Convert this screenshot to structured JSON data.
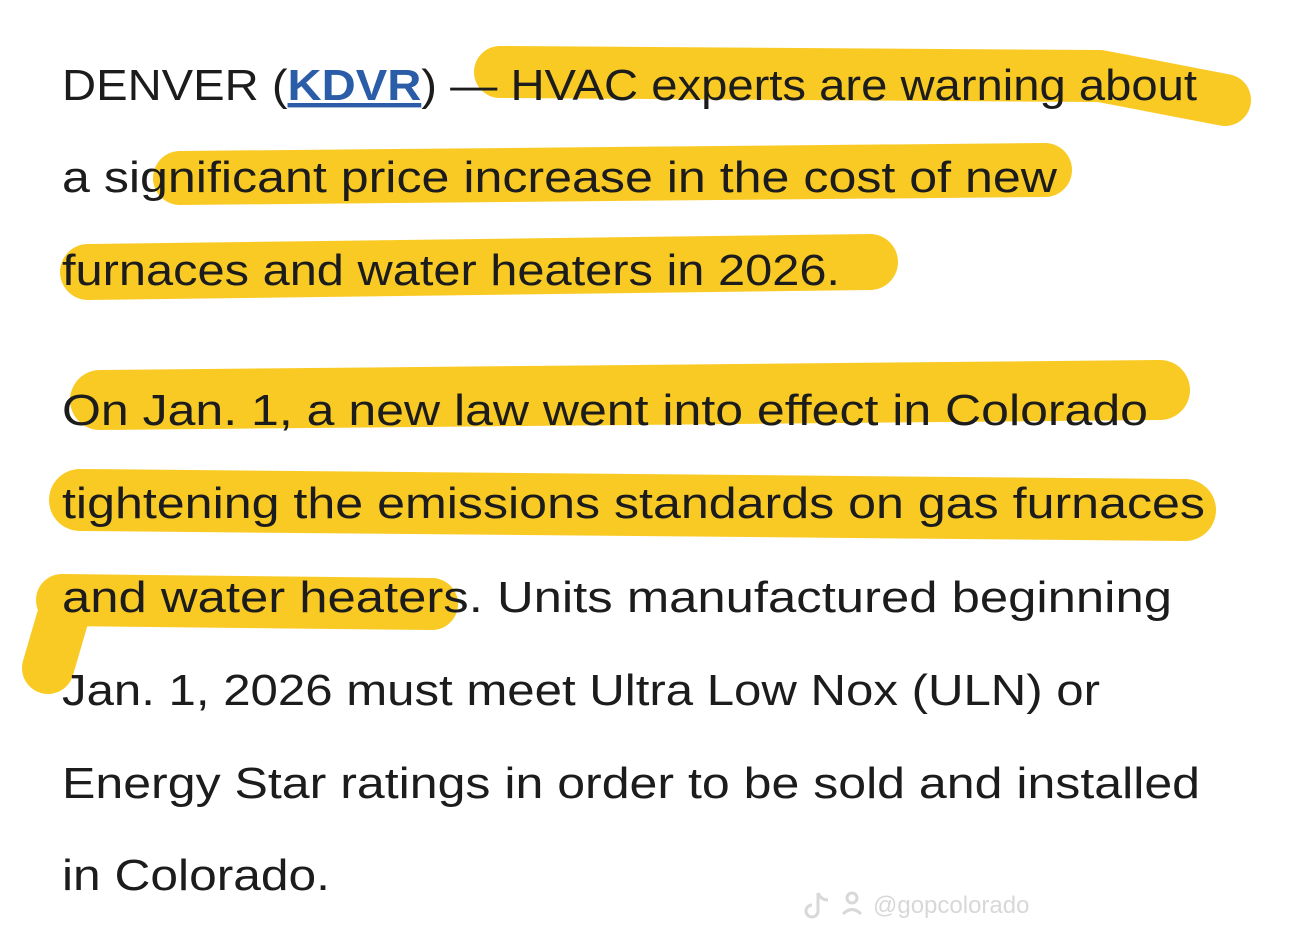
{
  "article": {
    "paragraph_1": {
      "lead": "DENVER (",
      "source": "KDVR",
      "lead_rest": ") — HVAC experts are warning about",
      "lines": [
        "a significant price increase in the cost of new",
        "furnaces and water heaters in 2026."
      ]
    },
    "paragraph_2": {
      "lines": [
        "On Jan. 1, a new law went into effect in Colorado",
        "tightening the emissions standards on gas furnaces",
        "and water heaters. Units manufactured beginning",
        "Jan. 1, 2026 must meet Ultra Low Nox (ULN) or",
        "Energy Star ratings in order to be sold and installed",
        "in Colorado."
      ]
    }
  },
  "watermark": "@gopcolorado"
}
